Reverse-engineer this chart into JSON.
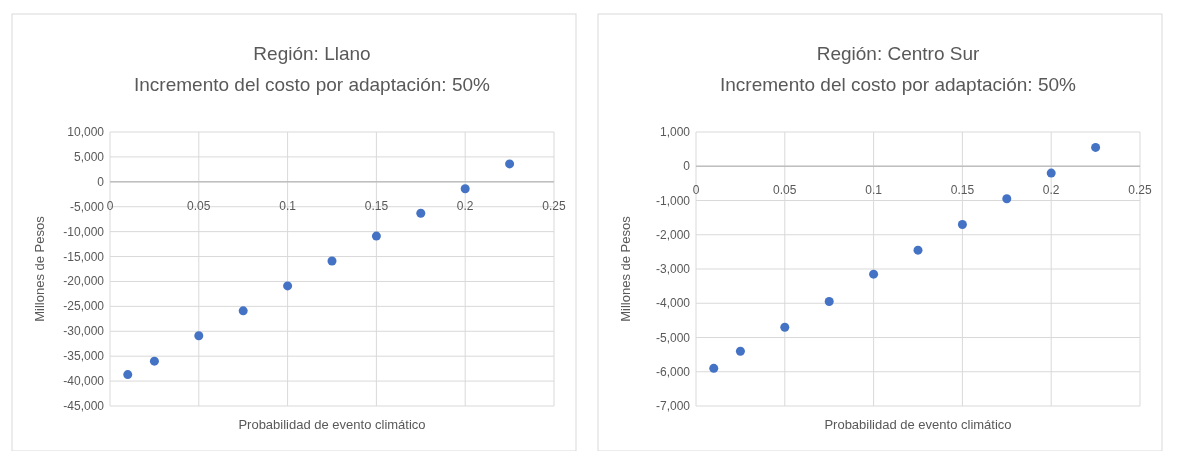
{
  "chart_data": [
    {
      "type": "scatter",
      "title": "Región: Llano",
      "subtitle": "Incremento del costo por adaptación: 50%",
      "xlabel": "Probabilidad de evento climático",
      "ylabel": "Millones de Pesos",
      "x": [
        0.01,
        0.025,
        0.05,
        0.075,
        0.1,
        0.125,
        0.15,
        0.175,
        0.2,
        0.225
      ],
      "series": [
        {
          "color": "#4472c4",
          "values": [
            -38700,
            -36000,
            -30900,
            -25900,
            -20900,
            -15900,
            -10900,
            -6300,
            -1400,
            3600
          ]
        }
      ],
      "xlim": [
        0,
        0.25
      ],
      "xticks": [
        0,
        {
          "value": 0.05,
          "label": "0.05"
        },
        0.1,
        0.15,
        0.2,
        0.25
      ],
      "ylim": [
        -45000,
        10000
      ],
      "yticks": [
        {
          "value": -45000,
          "label": "-45,000"
        },
        {
          "value": -40000,
          "label": "-40,000"
        },
        {
          "value": -35000,
          "label": "-35,000"
        },
        {
          "value": -30000,
          "label": "-30,000"
        },
        {
          "value": -25000,
          "label": "-25,000"
        },
        {
          "value": -20000,
          "label": "-20,000"
        },
        {
          "value": -15000,
          "label": "-15,000"
        },
        {
          "value": -10000,
          "label": "-10,000"
        },
        {
          "value": -5000,
          "label": "-5,000"
        },
        0,
        {
          "value": 5000,
          "label": "5,000"
        },
        {
          "value": 10000,
          "label": "10,000"
        }
      ],
      "grid": true,
      "marker": "circle"
    },
    {
      "type": "scatter",
      "title": "Región: Centro Sur",
      "subtitle": "Incremento del costo por adaptación: 50%",
      "xlabel": "Probabilidad de evento climático",
      "ylabel": "Millones de Pesos",
      "x": [
        0.01,
        0.025,
        0.05,
        0.075,
        0.1,
        0.125,
        0.15,
        0.175,
        0.2,
        0.225
      ],
      "series": [
        {
          "color": "#4472c4",
          "values": [
            -5900,
            -5400,
            -4700,
            -3950,
            -3150,
            -2450,
            -1700,
            -950,
            -200,
            550
          ]
        }
      ],
      "xlim": [
        0,
        0.25
      ],
      "xticks": [
        0,
        0.05,
        0.1,
        0.15,
        0.2,
        0.25
      ],
      "ylim": [
        -7000,
        1000
      ],
      "yticks": [
        {
          "value": -7000,
          "label": "-7,000"
        },
        {
          "value": -6000,
          "label": "-6,000"
        },
        {
          "value": -5000,
          "label": "-5,000"
        },
        {
          "value": -4000,
          "label": "-4,000"
        },
        {
          "value": -3000,
          "label": "-3,000"
        },
        {
          "value": -2000,
          "label": "-2,000"
        },
        {
          "value": -1000,
          "label": "-1,000"
        },
        0,
        {
          "value": 1000,
          "label": "1,000"
        }
      ],
      "grid": true,
      "marker": "circle"
    }
  ]
}
